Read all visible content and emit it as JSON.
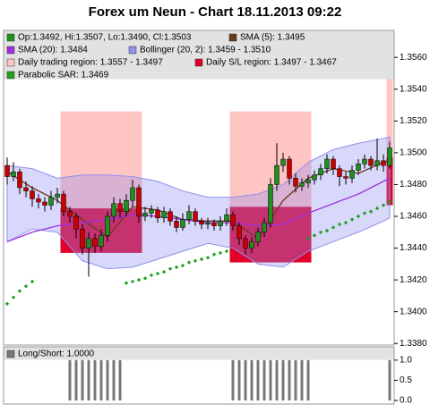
{
  "chart_data": [
    {
      "type": "candlestick",
      "title": "Forex um Neun - Chart 18.11.2013 09:22",
      "candle_name": "Op:1.3492, Hi:1.3507, Lo:1.3490, Cl:1.3503",
      "up_color": "#1f8f1f",
      "down_color": "#cc0000",
      "open": [
        1.3492,
        1.3485,
        1.3488,
        1.3478,
        1.3476,
        1.3471,
        1.3469,
        1.3467,
        1.3472,
        1.3474,
        1.3463,
        1.346,
        1.3452,
        1.344,
        1.3446,
        1.3441,
        1.3448,
        1.346,
        1.3468,
        1.3463,
        1.347,
        1.3478,
        1.346,
        1.3462,
        1.3464,
        1.3459,
        1.3463,
        1.3457,
        1.3453,
        1.3458,
        1.3463,
        1.3457,
        1.3455,
        1.3456,
        1.3454,
        1.3457,
        1.3461,
        1.3454,
        1.3446,
        1.344,
        1.3444,
        1.345,
        1.3456,
        1.348,
        1.3492,
        1.3496,
        1.3484,
        1.3479,
        1.3481,
        1.3483,
        1.3486,
        1.349,
        1.3496,
        1.349,
        1.3485,
        1.3484,
        1.3489,
        1.3493,
        1.3496,
        1.3492,
        1.3495,
        1.3492
      ],
      "high": [
        1.3497,
        1.3494,
        1.349,
        1.3482,
        1.3479,
        1.3474,
        1.3472,
        1.3476,
        1.3478,
        1.3476,
        1.3466,
        1.3462,
        1.3455,
        1.345,
        1.3449,
        1.3452,
        1.3463,
        1.3472,
        1.3471,
        1.3474,
        1.3483,
        1.348,
        1.3466,
        1.3467,
        1.3466,
        1.3466,
        1.3465,
        1.346,
        1.3462,
        1.3467,
        1.3465,
        1.3459,
        1.3459,
        1.3458,
        1.346,
        1.3465,
        1.3463,
        1.3456,
        1.3448,
        1.3447,
        1.3453,
        1.3459,
        1.3484,
        1.3506,
        1.35,
        1.3498,
        1.3487,
        1.3484,
        1.3486,
        1.3489,
        1.3493,
        1.3499,
        1.3498,
        1.3492,
        1.3488,
        1.3492,
        1.3496,
        1.3499,
        1.3498,
        1.3509,
        1.3499,
        1.3507
      ],
      "low": [
        1.348,
        1.3482,
        1.3474,
        1.3472,
        1.3466,
        1.3465,
        1.3463,
        1.3464,
        1.3468,
        1.346,
        1.3456,
        1.3446,
        1.3436,
        1.3422,
        1.3437,
        1.3438,
        1.3444,
        1.3456,
        1.3459,
        1.346,
        1.3466,
        1.3456,
        1.3457,
        1.3459,
        1.3456,
        1.3456,
        1.3454,
        1.345,
        1.3451,
        1.3455,
        1.3454,
        1.3452,
        1.3452,
        1.3451,
        1.3451,
        1.3454,
        1.3451,
        1.3442,
        1.3436,
        1.3437,
        1.3441,
        1.3447,
        1.3453,
        1.3476,
        1.3488,
        1.348,
        1.3475,
        1.3476,
        1.3478,
        1.348,
        1.3483,
        1.3487,
        1.3486,
        1.3479,
        1.348,
        1.3481,
        1.3486,
        1.349,
        1.3489,
        1.3489,
        1.3488,
        1.349
      ],
      "close": [
        1.3485,
        1.3488,
        1.3478,
        1.3476,
        1.3471,
        1.3469,
        1.3467,
        1.3472,
        1.3474,
        1.3463,
        1.346,
        1.3452,
        1.344,
        1.3446,
        1.3441,
        1.3448,
        1.346,
        1.3468,
        1.3463,
        1.347,
        1.3478,
        1.346,
        1.3462,
        1.3464,
        1.3459,
        1.3463,
        1.3457,
        1.3453,
        1.3458,
        1.3463,
        1.3457,
        1.3455,
        1.3456,
        1.3454,
        1.3457,
        1.3461,
        1.3454,
        1.3446,
        1.344,
        1.3444,
        1.345,
        1.3456,
        1.348,
        1.3492,
        1.3496,
        1.3484,
        1.3479,
        1.3481,
        1.3483,
        1.3486,
        1.349,
        1.3496,
        1.349,
        1.3485,
        1.3484,
        1.3489,
        1.3493,
        1.3496,
        1.3492,
        1.3495,
        1.3492,
        1.3503
      ],
      "lines": [
        {
          "name": "SMA (5): 1.3495",
          "color": "#6b3a1f",
          "x": [
            0,
            4,
            8,
            12,
            16,
            20,
            24,
            28,
            32,
            36,
            40,
            44,
            48,
            52,
            56,
            60,
            61
          ],
          "values": [
            1.3488,
            1.3478,
            1.347,
            1.3458,
            1.3447,
            1.3466,
            1.3464,
            1.3458,
            1.3457,
            1.3457,
            1.3446,
            1.347,
            1.3484,
            1.349,
            1.3487,
            1.3494,
            1.3495
          ]
        },
        {
          "name": "SMA (20): 1.3484",
          "color": "#a030e0",
          "x": [
            0,
            4,
            8,
            12,
            16,
            20,
            24,
            28,
            32,
            36,
            40,
            44,
            48,
            52,
            56,
            60,
            61
          ],
          "values": [
            1.3444,
            1.345,
            1.3454,
            1.3456,
            1.3458,
            1.3461,
            1.346,
            1.3458,
            1.3456,
            1.3456,
            1.3454,
            1.3455,
            1.3462,
            1.3468,
            1.3474,
            1.3482,
            1.3484
          ]
        }
      ],
      "band": {
        "name": "Bollinger (20, 2): 1.3459 - 1.3510",
        "color": "#9090f0",
        "x": [
          0,
          4,
          8,
          12,
          16,
          20,
          24,
          28,
          32,
          36,
          40,
          44,
          48,
          52,
          56,
          60,
          61
        ],
        "upper": [
          1.3492,
          1.349,
          1.3484,
          1.3486,
          1.3486,
          1.3485,
          1.3482,
          1.3476,
          1.3472,
          1.3472,
          1.3474,
          1.348,
          1.3494,
          1.3502,
          1.3506,
          1.3509,
          1.351
        ],
        "lower": [
          1.3444,
          1.3452,
          1.345,
          1.3432,
          1.3427,
          1.3428,
          1.3433,
          1.3438,
          1.3443,
          1.344,
          1.343,
          1.3428,
          1.3438,
          1.3444,
          1.345,
          1.3457,
          1.3459
        ]
      },
      "regions": [
        {
          "name": "Daily trading region: 1.3557 - 1.3497",
          "color": "#ffc4c4",
          "segments": [
            {
              "start": 9,
              "end": 21,
              "high": 1.3526,
              "low": 1.3465
            },
            {
              "start": 36,
              "end": 48,
              "high": 1.3526,
              "low": 1.3466
            },
            {
              "start": 61,
              "end": 61,
              "high": 1.3557,
              "low": 1.3497
            }
          ]
        },
        {
          "name": "Daily S/L region: 1.3497 - 1.3467",
          "color": "#e0002a",
          "segments": [
            {
              "start": 9,
              "end": 21,
              "high": 1.3465,
              "low": 1.3437
            },
            {
              "start": 36,
              "end": 48,
              "high": 1.3466,
              "low": 1.3431
            },
            {
              "start": 61,
              "end": 61,
              "high": 1.3497,
              "low": 1.3467
            }
          ]
        }
      ],
      "sar": {
        "name": "Parabolic SAR: 1.3469",
        "color": "#22a022",
        "values": [
          1.3405,
          1.3409,
          1.3413,
          1.3416,
          1.3419,
          null,
          null,
          null,
          null,
          null,
          null,
          null,
          null,
          null,
          null,
          null,
          null,
          null,
          null,
          1.3418,
          1.3419,
          1.342,
          1.3421,
          1.3423,
          1.3424,
          1.3425,
          1.3427,
          1.3428,
          1.3429,
          1.3431,
          1.3432,
          1.3433,
          1.3434,
          1.3436,
          1.3437,
          1.3438,
          null,
          null,
          null,
          null,
          null,
          null,
          null,
          null,
          null,
          null,
          null,
          null,
          1.3446,
          1.3448,
          1.345,
          1.3451,
          1.3453,
          1.3455,
          1.3456,
          1.3458,
          1.346,
          1.3462,
          1.3463,
          1.3465,
          1.3467,
          1.3469
        ]
      },
      "ylim": [
        1.3379,
        1.3577
      ],
      "yticks": [
        {
          "value": 1.338,
          "label": "1.3380"
        },
        {
          "value": 1.34,
          "label": "1.3400"
        },
        {
          "value": 1.342,
          "label": "1.3420"
        },
        {
          "value": 1.344,
          "label": "1.3440"
        },
        {
          "value": 1.346,
          "label": "1.3460"
        },
        {
          "value": 1.348,
          "label": "1.3480"
        },
        {
          "value": 1.35,
          "label": "1.3500"
        },
        {
          "value": 1.352,
          "label": "1.3520"
        },
        {
          "value": 1.354,
          "label": "1.3540"
        },
        {
          "value": 1.356,
          "label": "1.3560"
        }
      ]
    },
    {
      "type": "bar",
      "series": [
        {
          "name": "Long/Short: 1.0000",
          "color": "#777777",
          "values": [
            0,
            0,
            0,
            0,
            0,
            0,
            0,
            0,
            0,
            0,
            1,
            1,
            1,
            1,
            1,
            1,
            1,
            1,
            1,
            0,
            0,
            0,
            0,
            0,
            0,
            0,
            0,
            0,
            0,
            0,
            0,
            0,
            0,
            0,
            0,
            0,
            1,
            1,
            1,
            1,
            1,
            1,
            1,
            1,
            1,
            1,
            1,
            1,
            1,
            0,
            0,
            0,
            0,
            0,
            0,
            0,
            0,
            0,
            0,
            0,
            0,
            1
          ]
        }
      ],
      "ylim": [
        -0.09,
        1.33
      ],
      "yticks": [
        {
          "value": 0,
          "label": "0.0"
        },
        {
          "value": 0.5,
          "label": "0.5"
        },
        {
          "value": 1,
          "label": "1.0"
        }
      ]
    }
  ]
}
